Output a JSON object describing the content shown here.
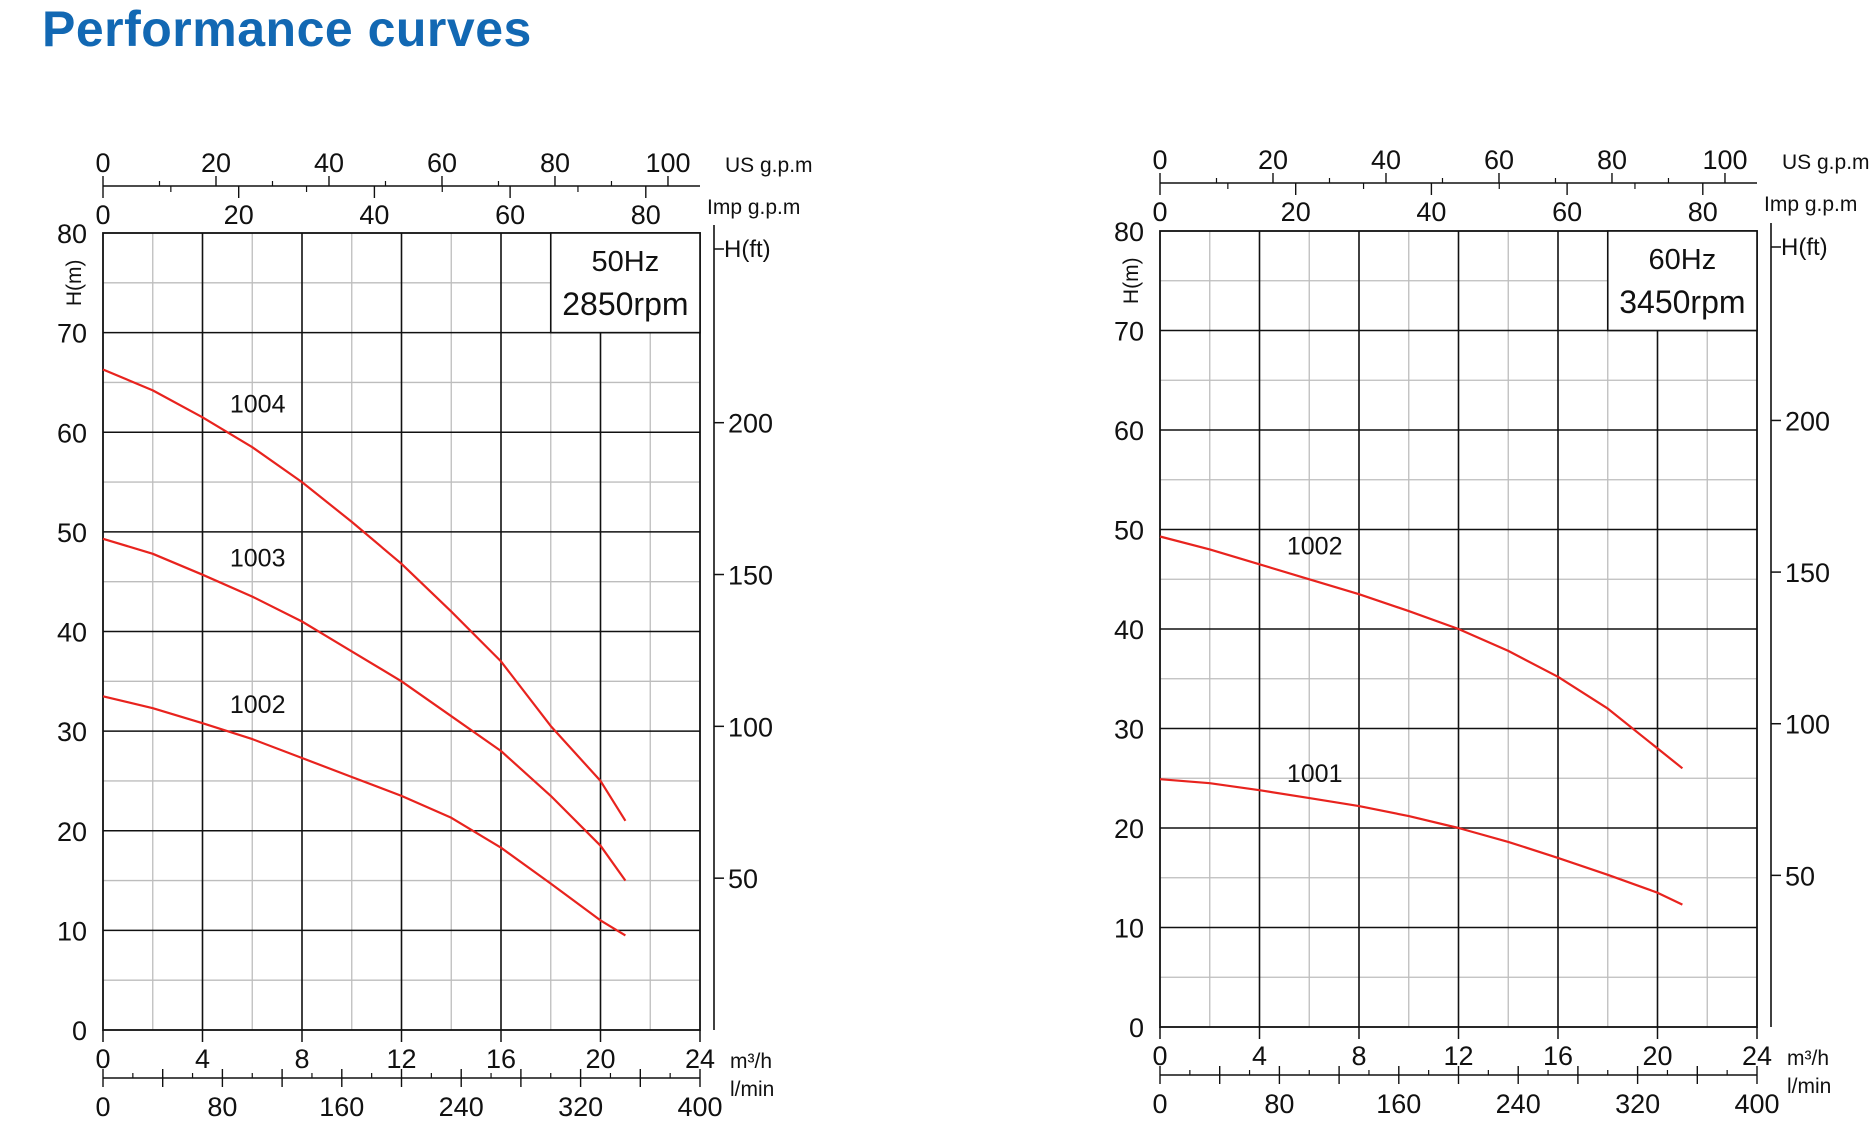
{
  "page": {
    "title": "Performance curves"
  },
  "colors": {
    "title": "#1268b3",
    "curve": "#e8231e",
    "freq": "#1268b3",
    "grid_major": "#111111",
    "grid_minor": "#bdbdbd"
  },
  "chart_data": [
    {
      "type": "line",
      "frequency_label": "50Hz",
      "speed_label": "2850rpm",
      "ylabel": "H(m)",
      "ylabel_right": "H(ft)",
      "xlabel": "m³/h",
      "xlabel_lmin": "l/min",
      "xlabel_us": "US g.p.m",
      "xlabel_imp": "Imp g.p.m",
      "xlim": [
        0,
        24
      ],
      "ylim": [
        0,
        80
      ],
      "x_ticks": [
        0,
        4,
        8,
        12,
        16,
        20,
        24
      ],
      "y_ticks": [
        0,
        10,
        20,
        30,
        40,
        50,
        60,
        70,
        80
      ],
      "ft_ticks": [
        50,
        100,
        150,
        200
      ],
      "lmin_ticks": [
        0,
        80,
        160,
        240,
        320,
        400
      ],
      "us_ticks": [
        0,
        20,
        40,
        60,
        80,
        100
      ],
      "imp_ticks": [
        0,
        20,
        40,
        60,
        80
      ],
      "grid": true,
      "series": [
        {
          "name": "1004",
          "label_at": [
            5.1,
            62
          ],
          "x": [
            0,
            2,
            4,
            6,
            8,
            10,
            12,
            14,
            16,
            18,
            20,
            21
          ],
          "y": [
            66.3,
            64.2,
            61.5,
            58.5,
            55,
            51,
            46.8,
            42,
            37,
            30.5,
            25,
            21
          ]
        },
        {
          "name": "1003",
          "label_at": [
            5.1,
            46.5
          ],
          "x": [
            0,
            2,
            4,
            6,
            8,
            10,
            12,
            14,
            16,
            18,
            20,
            21
          ],
          "y": [
            49.3,
            47.8,
            45.7,
            43.5,
            41,
            38,
            35,
            31.5,
            28,
            23.5,
            18.5,
            15
          ]
        },
        {
          "name": "1002",
          "label_at": [
            5.1,
            31.8
          ],
          "x": [
            0,
            2,
            4,
            6,
            8,
            10,
            12,
            14,
            16,
            18,
            20,
            21
          ],
          "y": [
            33.5,
            32.3,
            30.8,
            29.2,
            27.3,
            25.4,
            23.5,
            21.3,
            18.3,
            14.7,
            11,
            9.5
          ]
        }
      ]
    },
    {
      "type": "line",
      "frequency_label": "60Hz",
      "speed_label": "3450rpm",
      "ylabel": "H(m)",
      "ylabel_right": "H(ft)",
      "xlabel": "m³/h",
      "xlabel_lmin": "l/min",
      "xlabel_us": "US g.p.m",
      "xlabel_imp": "Imp g.p.m",
      "xlim": [
        0,
        24
      ],
      "ylim": [
        0,
        80
      ],
      "x_ticks": [
        0,
        4,
        8,
        12,
        16,
        20,
        24
      ],
      "y_ticks": [
        0,
        10,
        20,
        30,
        40,
        50,
        60,
        70,
        80
      ],
      "ft_ticks": [
        50,
        100,
        150,
        200
      ],
      "lmin_ticks": [
        0,
        80,
        160,
        240,
        320,
        400
      ],
      "us_ticks": [
        0,
        20,
        40,
        60,
        80,
        100
      ],
      "imp_ticks": [
        0,
        20,
        40,
        60,
        80
      ],
      "grid": true,
      "series": [
        {
          "name": "1002",
          "label_at": [
            5.1,
            47.5
          ],
          "x": [
            0,
            2,
            4,
            6,
            8,
            10,
            12,
            14,
            16,
            18,
            20,
            21
          ],
          "y": [
            49.3,
            48,
            46.5,
            45,
            43.5,
            41.8,
            40,
            37.8,
            35.2,
            32,
            28,
            26
          ]
        },
        {
          "name": "1001",
          "label_at": [
            5.1,
            24.6
          ],
          "x": [
            0,
            2,
            4,
            6,
            8,
            10,
            12,
            14,
            16,
            18,
            20,
            21
          ],
          "y": [
            24.9,
            24.5,
            23.8,
            23,
            22.2,
            21.2,
            20,
            18.6,
            17,
            15.3,
            13.5,
            12.3
          ]
        }
      ]
    }
  ]
}
